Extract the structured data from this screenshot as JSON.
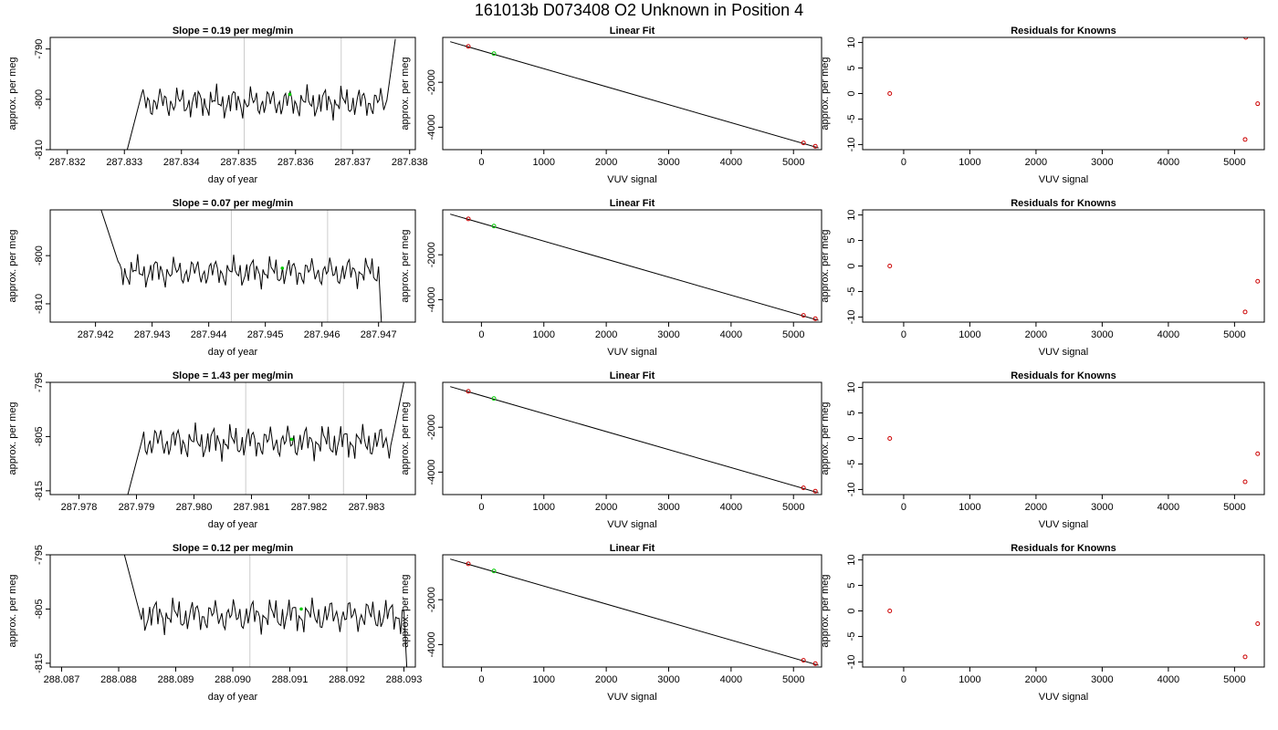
{
  "figure": {
    "title": "161013b     D073408   O2 Unknown in Position  4"
  },
  "chart_data": [
    {
      "type": "line",
      "role": "trace",
      "row": 0,
      "title": "Slope =  0.19  per meg/min",
      "xlabel": "day of year",
      "ylabel": "approx. per meg",
      "xlim": [
        287.8317,
        287.8381
      ],
      "ylim": [
        -810,
        -787.7
      ],
      "xticks": [
        287.832,
        287.833,
        287.834,
        287.835,
        287.836,
        287.837,
        287.838
      ],
      "xtick_labels": [
        "287.832",
        "287.833",
        "287.834",
        "287.835",
        "287.836",
        "287.837",
        "287.838"
      ],
      "yticks": [
        -810,
        -800,
        -790
      ],
      "ytick_labels": [
        "-810",
        "-800",
        "-790"
      ],
      "vlines": [
        287.8351,
        287.8368
      ],
      "trace_start": 287.83305,
      "trace_end": 287.83775,
      "trace_base": -800.6,
      "trace_jump_start": 287.8333,
      "trace_rise_start": 287.8376,
      "trace_end_value": -788,
      "marker": {
        "x": 287.8359,
        "y": -799,
        "color": "#00cc00"
      },
      "line_color": "#000000",
      "vline_color": "#cccccc"
    },
    {
      "type": "scatter",
      "role": "linear-fit",
      "row": 0,
      "title": "Linear Fit",
      "xlabel": "VUV signal",
      "ylabel": "approx. per meg",
      "xlim": [
        -620,
        5450
      ],
      "ylim": [
        -5000,
        0
      ],
      "xticks": [
        0,
        1000,
        2000,
        3000,
        4000,
        5000
      ],
      "xtick_labels": [
        "0",
        "1000",
        "2000",
        "3000",
        "4000",
        "5000"
      ],
      "yticks": [
        -4000,
        -2000
      ],
      "ytick_labels": [
        "-4000",
        "-2000"
      ],
      "line": {
        "x1": -500,
        "y1": -190,
        "x2": 5400,
        "y2": -4920
      },
      "knowns": [
        {
          "x": -210,
          "y": -400
        },
        {
          "x": 5160,
          "y": -4700
        },
        {
          "x": 5350,
          "y": -4850
        }
      ],
      "unknown": {
        "x": 200,
        "y": -720
      },
      "known_color": "#cc0000",
      "unknown_color": "#00cc00"
    },
    {
      "type": "scatter",
      "role": "residuals",
      "row": 0,
      "title": "Residuals for Knowns",
      "xlabel": "VUV signal",
      "ylabel": "approx. per meg",
      "xlim": [
        -620,
        5450
      ],
      "ylim": [
        -11,
        11
      ],
      "xticks": [
        0,
        1000,
        2000,
        3000,
        4000,
        5000
      ],
      "xtick_labels": [
        "0",
        "1000",
        "2000",
        "3000",
        "4000",
        "5000"
      ],
      "yticks": [
        -10,
        -5,
        0,
        5,
        10
      ],
      "ytick_labels": [
        "-10",
        "-5",
        "0",
        "5",
        "10"
      ],
      "points": [
        {
          "x": -210,
          "y": 0
        },
        {
          "x": 5160,
          "y": -9
        },
        {
          "x": 5350,
          "y": -2
        },
        {
          "x": 5170,
          "y": 11
        }
      ],
      "point_color": "#cc0000"
    },
    {
      "type": "line",
      "role": "trace",
      "row": 1,
      "title": "Slope =  0.07  per meg/min",
      "xlabel": "day of year",
      "ylabel": "approx. per meg",
      "xlim": [
        287.9412,
        287.94765
      ],
      "ylim": [
        -813.8,
        -790.5
      ],
      "xticks": [
        287.942,
        287.943,
        287.944,
        287.945,
        287.946,
        287.947
      ],
      "xtick_labels": [
        "287.942",
        "287.943",
        "287.944",
        "287.945",
        "287.946",
        "287.947"
      ],
      "yticks": [
        -810,
        -800
      ],
      "ytick_labels": [
        "-810",
        "-800"
      ],
      "vlines": [
        287.9444,
        287.9461
      ],
      "trace_start": 287.9421,
      "trace_end": 287.94705,
      "trace_base": -803.4,
      "trace_jump_start": 287.9424,
      "trace_rise_start": 287.947,
      "trace_end_value": -813.8,
      "trace_start_value": -790.5,
      "marker": {
        "x": 287.9453,
        "y": -802.6,
        "color": "#00cc00"
      },
      "line_color": "#000000",
      "vline_color": "#cccccc"
    },
    {
      "type": "scatter",
      "role": "linear-fit",
      "row": 1,
      "title": "Linear Fit",
      "xlabel": "VUV signal",
      "ylabel": "approx. per meg",
      "xlim": [
        -620,
        5450
      ],
      "ylim": [
        -5000,
        0
      ],
      "xticks": [
        0,
        1000,
        2000,
        3000,
        4000,
        5000
      ],
      "xtick_labels": [
        "0",
        "1000",
        "2000",
        "3000",
        "4000",
        "5000"
      ],
      "yticks": [
        -4000,
        -2000
      ],
      "ytick_labels": [
        "-4000",
        "-2000"
      ],
      "line": {
        "x1": -500,
        "y1": -190,
        "x2": 5400,
        "y2": -4920
      },
      "knowns": [
        {
          "x": -210,
          "y": -400
        },
        {
          "x": 5160,
          "y": -4700
        },
        {
          "x": 5350,
          "y": -4850
        }
      ],
      "unknown": {
        "x": 200,
        "y": -720
      },
      "known_color": "#cc0000",
      "unknown_color": "#00cc00"
    },
    {
      "type": "scatter",
      "role": "residuals",
      "row": 1,
      "title": "Residuals for Knowns",
      "xlabel": "VUV signal",
      "ylabel": "approx. per meg",
      "xlim": [
        -620,
        5450
      ],
      "ylim": [
        -11,
        11
      ],
      "xticks": [
        0,
        1000,
        2000,
        3000,
        4000,
        5000
      ],
      "xtick_labels": [
        "0",
        "1000",
        "2000",
        "3000",
        "4000",
        "5000"
      ],
      "yticks": [
        -10,
        -5,
        0,
        5,
        10
      ],
      "ytick_labels": [
        "-10",
        "-5",
        "0",
        "5",
        "10"
      ],
      "points": [
        {
          "x": -210,
          "y": 0
        },
        {
          "x": 5160,
          "y": -9
        },
        {
          "x": 5350,
          "y": -3
        }
      ],
      "point_color": "#cc0000"
    },
    {
      "type": "line",
      "role": "trace",
      "row": 2,
      "title": "Slope =  1.43  per meg/min",
      "xlabel": "day of year",
      "ylabel": "approx. per meg",
      "xlim": [
        287.9775,
        287.98385
      ],
      "ylim": [
        -815.7,
        -795
      ],
      "xticks": [
        287.978,
        287.979,
        287.98,
        287.981,
        287.982,
        287.983
      ],
      "xtick_labels": [
        "287.978",
        "287.979",
        "287.980",
        "287.981",
        "287.982",
        "287.983"
      ],
      "yticks": [
        -815,
        -805,
        -795
      ],
      "ytick_labels": [
        "-815",
        "-805",
        "-795"
      ],
      "vlines": [
        287.9809,
        287.9826
      ],
      "trace_start": 287.97885,
      "trace_end": 287.98365,
      "trace_base": -806,
      "trace_jump_start": 287.9791,
      "trace_rise_start": 287.98345,
      "trace_end_value": -795,
      "trace_start_value": -815.7,
      "marker": {
        "x": 287.9817,
        "y": -805.5,
        "color": "#00cc00"
      },
      "line_color": "#000000",
      "vline_color": "#cccccc"
    },
    {
      "type": "scatter",
      "role": "linear-fit",
      "row": 2,
      "title": "Linear Fit",
      "xlabel": "VUV signal",
      "ylabel": "approx. per meg",
      "xlim": [
        -620,
        5450
      ],
      "ylim": [
        -5000,
        0
      ],
      "xticks": [
        0,
        1000,
        2000,
        3000,
        4000,
        5000
      ],
      "xtick_labels": [
        "0",
        "1000",
        "2000",
        "3000",
        "4000",
        "5000"
      ],
      "yticks": [
        -4000,
        -2000
      ],
      "ytick_labels": [
        "-4000",
        "-2000"
      ],
      "line": {
        "x1": -500,
        "y1": -190,
        "x2": 5400,
        "y2": -4920
      },
      "knowns": [
        {
          "x": -210,
          "y": -400
        },
        {
          "x": 5160,
          "y": -4700
        },
        {
          "x": 5350,
          "y": -4850
        }
      ],
      "unknown": {
        "x": 200,
        "y": -720
      },
      "known_color": "#cc0000",
      "unknown_color": "#00cc00"
    },
    {
      "type": "scatter",
      "role": "residuals",
      "row": 2,
      "title": "Residuals for Knowns",
      "xlabel": "VUV signal",
      "ylabel": "approx. per meg",
      "xlim": [
        -620,
        5450
      ],
      "ylim": [
        -11,
        11
      ],
      "xticks": [
        0,
        1000,
        2000,
        3000,
        4000,
        5000
      ],
      "xtick_labels": [
        "0",
        "1000",
        "2000",
        "3000",
        "4000",
        "5000"
      ],
      "yticks": [
        -10,
        -5,
        0,
        5,
        10
      ],
      "ytick_labels": [
        "-10",
        "-5",
        "0",
        "5",
        "10"
      ],
      "points": [
        {
          "x": -210,
          "y": 0
        },
        {
          "x": 5160,
          "y": -8.5
        },
        {
          "x": 5350,
          "y": -3
        }
      ],
      "point_color": "#cc0000"
    },
    {
      "type": "line",
      "role": "trace",
      "row": 3,
      "title": "Slope =  0.12  per meg/min",
      "xlabel": "day of year",
      "ylabel": "approx. per meg",
      "xlim": [
        288.0868,
        288.0932
      ],
      "ylim": [
        -815.7,
        -795
      ],
      "xticks": [
        288.087,
        288.088,
        288.089,
        288.09,
        288.091,
        288.092,
        288.093
      ],
      "xtick_labels": [
        "288.087",
        "288.088",
        "288.089",
        "288.090",
        "288.091",
        "288.092",
        "288.093"
      ],
      "yticks": [
        -815,
        -805,
        -795
      ],
      "ytick_labels": [
        "-815",
        "-805",
        "-795"
      ],
      "vlines": [
        288.0903,
        288.092
      ],
      "trace_start": 288.0881,
      "trace_end": 288.09305,
      "trace_base": -806.2,
      "trace_jump_start": 288.0884,
      "trace_rise_start": 288.093,
      "trace_end_value": -815.7,
      "trace_start_value": -795,
      "marker": {
        "x": 288.0912,
        "y": -805,
        "color": "#00cc00"
      },
      "line_color": "#000000",
      "vline_color": "#cccccc"
    },
    {
      "type": "scatter",
      "role": "linear-fit",
      "row": 3,
      "title": "Linear Fit",
      "xlabel": "VUV signal",
      "ylabel": "approx. per meg",
      "xlim": [
        -620,
        5450
      ],
      "ylim": [
        -5000,
        0
      ],
      "xticks": [
        0,
        1000,
        2000,
        3000,
        4000,
        5000
      ],
      "xtick_labels": [
        "0",
        "1000",
        "2000",
        "3000",
        "4000",
        "5000"
      ],
      "yticks": [
        -4000,
        -2000
      ],
      "ytick_labels": [
        "-4000",
        "-2000"
      ],
      "line": {
        "x1": -500,
        "y1": -190,
        "x2": 5400,
        "y2": -4920
      },
      "knowns": [
        {
          "x": -210,
          "y": -400
        },
        {
          "x": 5160,
          "y": -4700
        },
        {
          "x": 5350,
          "y": -4850
        }
      ],
      "unknown": {
        "x": 200,
        "y": -720
      },
      "known_color": "#cc0000",
      "unknown_color": "#00cc00"
    },
    {
      "type": "scatter",
      "role": "residuals",
      "row": 3,
      "title": "Residuals for Knowns",
      "xlabel": "VUV signal",
      "ylabel": "approx. per meg",
      "xlim": [
        -620,
        5450
      ],
      "ylim": [
        -11,
        11
      ],
      "xticks": [
        0,
        1000,
        2000,
        3000,
        4000,
        5000
      ],
      "xtick_labels": [
        "0",
        "1000",
        "2000",
        "3000",
        "4000",
        "5000"
      ],
      "yticks": [
        -10,
        -5,
        0,
        5,
        10
      ],
      "ytick_labels": [
        "-10",
        "-5",
        "0",
        "5",
        "10"
      ],
      "points": [
        {
          "x": -210,
          "y": 0
        },
        {
          "x": 5160,
          "y": -9
        },
        {
          "x": 5350,
          "y": -2.5
        }
      ],
      "point_color": "#cc0000"
    }
  ]
}
